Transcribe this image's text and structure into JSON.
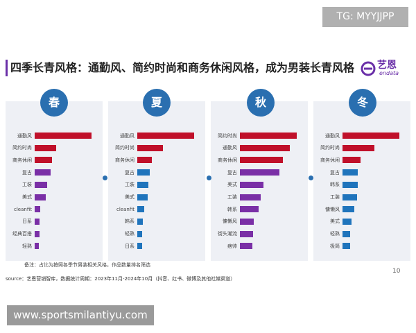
{
  "watermark_top": "TG: MYYJJPP",
  "watermark_bottom": "www.sportsmilantiyu.com",
  "title": "四季长青风格：通勤风、简约时尚和商务休闲风格，成为男装长青风格",
  "logo": {
    "name": "艺恩",
    "sub": "endata"
  },
  "note": "备注：占比为按照各季节男装相关风格，作品数量排名筛选",
  "source": "source：艺恩营销智库，数据统计周期：2023年11月-2024年10月（抖音、红书、微博及其他社媒渠道）",
  "page_number": "10",
  "colors": {
    "red": "#c0102a",
    "purple": "#7a2fa6",
    "blue": "#1f74bc",
    "badge": "#2a6fb0",
    "panel": "#eef0f5"
  },
  "chart_data": [
    {
      "type": "bar",
      "orientation": "horizontal",
      "season": "春",
      "categories": [
        "通勤风",
        "简约时尚",
        "商务休闲",
        "复古",
        "工装",
        "美式",
        "cleanfit",
        "日系",
        "经典百搭",
        "轻熟"
      ],
      "values": [
        100,
        38,
        31,
        28,
        22,
        19,
        10,
        9,
        8,
        7
      ],
      "colors": [
        "red",
        "red",
        "red",
        "purple",
        "purple",
        "purple",
        "purple",
        "purple",
        "purple",
        "purple"
      ]
    },
    {
      "type": "bar",
      "orientation": "horizontal",
      "season": "夏",
      "categories": [
        "通勤风",
        "简约时尚",
        "商务休闲",
        "复古",
        "工装",
        "美式",
        "cleanfit",
        "韩系",
        "轻熟",
        "日系"
      ],
      "values": [
        100,
        45,
        26,
        22,
        20,
        18,
        12,
        10,
        9,
        8
      ],
      "colors": [
        "red",
        "red",
        "red",
        "blue",
        "blue",
        "blue",
        "blue",
        "blue",
        "blue",
        "blue"
      ]
    },
    {
      "type": "bar",
      "orientation": "horizontal",
      "season": "秋",
      "categories": [
        "简约时尚",
        "通勤风",
        "商务休闲",
        "复古",
        "美式",
        "工装",
        "韩系",
        "慵懒风",
        "街头潮流",
        "痞帅"
      ],
      "values": [
        100,
        88,
        76,
        70,
        42,
        37,
        33,
        24,
        23,
        22
      ],
      "colors": [
        "red",
        "red",
        "red",
        "purple",
        "purple",
        "purple",
        "purple",
        "purple",
        "purple",
        "purple"
      ]
    },
    {
      "type": "bar",
      "orientation": "horizontal",
      "season": "冬",
      "categories": [
        "通勤风",
        "简约时尚",
        "商务休闲",
        "复古",
        "韩系",
        "工装",
        "慵懒风",
        "美式",
        "轻熟",
        "极简"
      ],
      "values": [
        100,
        56,
        32,
        27,
        27,
        26,
        21,
        16,
        14,
        13
      ],
      "colors": [
        "red",
        "red",
        "red",
        "blue",
        "blue",
        "blue",
        "blue",
        "blue",
        "blue",
        "blue"
      ]
    }
  ]
}
